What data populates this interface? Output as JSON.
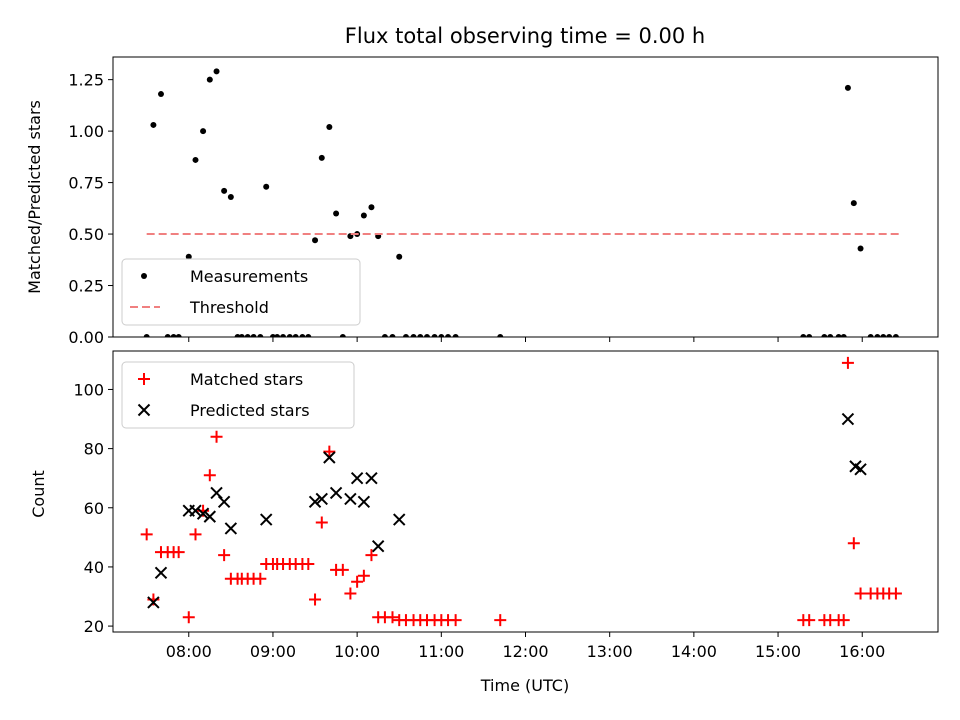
{
  "colors": {
    "measurement": "#000000",
    "threshold": "#f08080",
    "matched": "#ff0000",
    "predicted": "#000000"
  },
  "chart_data": [
    {
      "type": "scatter",
      "title": "Flux total observing time = 0.00 h",
      "xlabel": "",
      "ylabel": "Matched/Predicted stars",
      "xlim": [
        7.1,
        16.9
      ],
      "ylim": [
        0.0,
        1.36
      ],
      "yticks": [
        0.0,
        0.25,
        0.5,
        0.75,
        1.0,
        1.25
      ],
      "ytick_labels": [
        "0.00",
        "0.25",
        "0.50",
        "0.75",
        "1.00",
        "1.25"
      ],
      "legend": [
        "Measurements",
        "Threshold"
      ],
      "legend_position": "lower-left",
      "series": [
        {
          "name": "Measurements",
          "marker": "dot",
          "x": [
            7.5,
            7.58,
            7.67,
            7.75,
            7.82,
            7.88,
            8.0,
            8.08,
            8.17,
            8.25,
            8.33,
            8.42,
            8.5,
            8.58,
            8.63,
            8.7,
            8.77,
            8.85,
            8.92,
            9.0,
            9.05,
            9.12,
            9.2,
            9.27,
            9.35,
            9.42,
            9.5,
            9.58,
            9.67,
            9.75,
            9.83,
            9.92,
            10.0,
            10.08,
            10.17,
            10.25,
            10.33,
            10.42,
            10.5,
            10.58,
            10.67,
            10.75,
            10.83,
            10.92,
            11.0,
            11.08,
            11.17,
            11.7,
            15.3,
            15.37,
            15.55,
            15.62,
            15.72,
            15.78,
            15.83,
            15.9,
            15.98,
            16.1,
            16.18,
            16.25,
            16.32,
            16.4
          ],
          "y": [
            0.0,
            1.03,
            1.18,
            0.0,
            0.0,
            0.0,
            0.39,
            0.86,
            1.0,
            1.25,
            1.29,
            0.71,
            0.68,
            0.0,
            0.0,
            0.0,
            0.0,
            0.0,
            0.73,
            0.0,
            0.0,
            0.0,
            0.0,
            0.0,
            0.0,
            0.0,
            0.47,
            0.87,
            1.02,
            0.6,
            0.0,
            0.49,
            0.5,
            0.59,
            0.63,
            0.49,
            0.0,
            0.0,
            0.39,
            0.0,
            0.0,
            0.0,
            0.0,
            0.0,
            0.0,
            0.0,
            0.0,
            0.0,
            0.0,
            0.0,
            0.0,
            0.0,
            0.0,
            0.0,
            1.21,
            0.65,
            0.43,
            0.0,
            0.0,
            0.0,
            0.0,
            0.0
          ]
        },
        {
          "name": "Threshold",
          "style": "dashed",
          "x": [
            7.5,
            16.45
          ],
          "y": [
            0.5,
            0.5
          ]
        }
      ]
    },
    {
      "type": "scatter",
      "title": "",
      "xlabel": "Time (UTC)",
      "ylabel": "Count",
      "xlim": [
        7.1,
        16.9
      ],
      "ylim": [
        18,
        113
      ],
      "yticks": [
        20,
        40,
        60,
        80,
        100
      ],
      "ytick_labels": [
        "20",
        "40",
        "60",
        "80",
        "100"
      ],
      "xticks": [
        8,
        9,
        10,
        11,
        12,
        13,
        14,
        15,
        16
      ],
      "xtick_labels": [
        "08:00",
        "09:00",
        "10:00",
        "11:00",
        "12:00",
        "13:00",
        "14:00",
        "15:00",
        "16:00"
      ],
      "legend": [
        "Matched stars",
        "Predicted stars"
      ],
      "legend_position": "upper-left",
      "series": [
        {
          "name": "Matched stars",
          "marker": "plus",
          "x": [
            7.5,
            7.58,
            7.67,
            7.75,
            7.82,
            7.88,
            8.0,
            8.08,
            8.17,
            8.25,
            8.33,
            8.42,
            8.5,
            8.58,
            8.63,
            8.7,
            8.77,
            8.85,
            8.92,
            9.0,
            9.05,
            9.12,
            9.2,
            9.27,
            9.35,
            9.42,
            9.5,
            9.58,
            9.67,
            9.75,
            9.83,
            9.92,
            10.0,
            10.08,
            10.17,
            10.25,
            10.33,
            10.42,
            10.5,
            10.58,
            10.67,
            10.75,
            10.83,
            10.92,
            11.0,
            11.08,
            11.17,
            11.7,
            15.3,
            15.37,
            15.55,
            15.62,
            15.72,
            15.78,
            15.83,
            15.9,
            15.98,
            16.1,
            16.18,
            16.25,
            16.32,
            16.4
          ],
          "y": [
            51,
            29,
            45,
            45,
            45,
            45,
            23,
            51,
            59,
            71,
            84,
            44,
            36,
            36,
            36,
            36,
            36,
            36,
            41,
            41,
            41,
            41,
            41,
            41,
            41,
            41,
            29,
            55,
            79,
            39,
            39,
            31,
            35,
            37,
            44,
            23,
            23,
            23,
            22,
            22,
            22,
            22,
            22,
            22,
            22,
            22,
            22,
            22,
            22,
            22,
            22,
            22,
            22,
            22,
            109,
            48,
            31,
            31,
            31,
            31,
            31,
            31
          ]
        },
        {
          "name": "Predicted stars",
          "marker": "x",
          "x": [
            7.58,
            7.67,
            8.0,
            8.08,
            8.17,
            8.25,
            8.33,
            8.42,
            8.5,
            8.92,
            9.5,
            9.58,
            9.67,
            9.75,
            9.92,
            10.0,
            10.08,
            10.17,
            10.25,
            10.5,
            15.83,
            15.92,
            15.98
          ],
          "y": [
            28,
            38,
            59,
            59,
            58,
            57,
            65,
            62,
            53,
            56,
            62,
            63,
            77,
            65,
            63,
            70,
            62,
            70,
            47,
            56,
            90,
            74,
            73
          ]
        }
      ]
    }
  ]
}
